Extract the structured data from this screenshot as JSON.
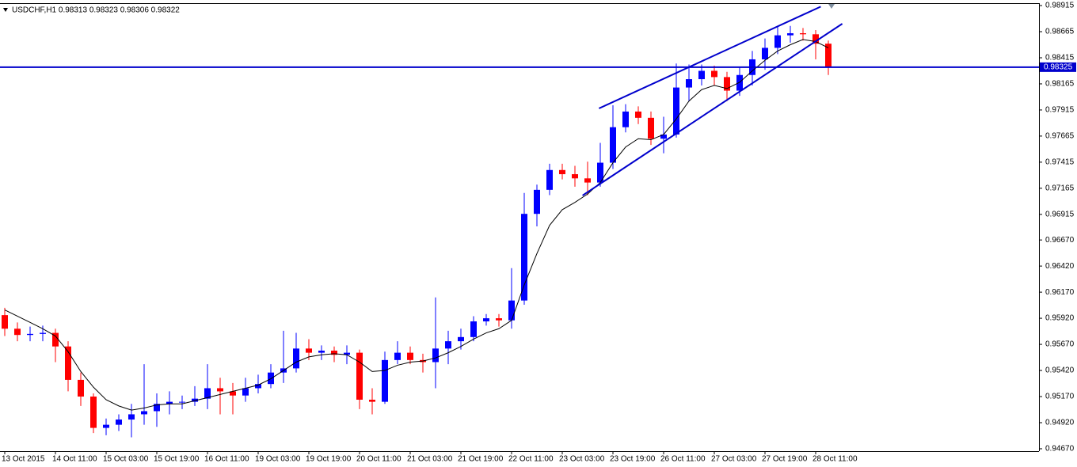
{
  "chart_data": {
    "type": "candlestick",
    "title": "USDCHF,H1  0.98313 0.98323 0.98306 0.98322",
    "up_color": "#0000ff",
    "down_color": "#ff0000",
    "ma_color": "#000000",
    "categories": [
      "13 Oct 2015",
      null,
      null,
      null,
      "14 Oct 11:00",
      null,
      null,
      null,
      "15 Oct 03:00",
      null,
      null,
      null,
      "15 Oct 19:00",
      null,
      null,
      null,
      "16 Oct 11:00",
      null,
      null,
      null,
      "19 Oct 03:00",
      null,
      null,
      null,
      "19 Oct 19:00",
      null,
      null,
      null,
      "20 Oct 11:00",
      null,
      null,
      null,
      "21 Oct 03:00",
      null,
      null,
      null,
      "21 Oct 19:00",
      null,
      null,
      null,
      "22 Oct 11:00",
      null,
      null,
      null,
      "23 Oct 03:00",
      null,
      null,
      null,
      "23 Oct 19:00",
      null,
      null,
      null,
      "26 Oct 11:00",
      null,
      null,
      null,
      "27 Oct 03:00",
      null,
      null,
      null,
      "27 Oct 19:00",
      null,
      null,
      null,
      "28 Oct 11:00",
      null
    ],
    "open": [
      0.9595,
      0.9582,
      0.9576,
      0.9577,
      0.9578,
      0.9565,
      0.9533,
      0.9517,
      0.9487,
      0.949,
      0.9495,
      0.95,
      0.9503,
      0.951,
      0.9512,
      0.9512,
      0.9515,
      0.9525,
      0.9522,
      0.9518,
      0.9525,
      0.9529,
      0.954,
      0.9544,
      0.9563,
      0.9559,
      0.9561,
      0.9557,
      0.9559,
      0.9514,
      0.9512,
      0.9552,
      0.9559,
      0.9552,
      0.955,
      0.9563,
      0.957,
      0.9574,
      0.9589,
      0.9592,
      0.959,
      0.9609,
      0.9692,
      0.9715,
      0.9734,
      0.973,
      0.9726,
      0.9722,
      0.9741,
      0.9775,
      0.979,
      0.9784,
      0.9764,
      0.9768,
      0.9813,
      0.9821,
      0.9829,
      0.9823,
      0.981,
      0.9825,
      0.984,
      0.9851,
      0.9863,
      0.9865,
      0.9864,
      0.9855
    ],
    "high": [
      0.9602,
      0.9588,
      0.9584,
      0.9585,
      0.9582,
      0.957,
      0.954,
      0.952,
      0.9496,
      0.95,
      0.951,
      0.9548,
      0.952,
      0.9522,
      0.9518,
      0.9527,
      0.9548,
      0.9535,
      0.953,
      0.9535,
      0.9538,
      0.9548,
      0.958,
      0.9578,
      0.9572,
      0.9566,
      0.9565,
      0.9566,
      0.9562,
      0.9525,
      0.956,
      0.957,
      0.9565,
      0.9558,
      0.9612,
      0.958,
      0.9582,
      0.9594,
      0.9596,
      0.9596,
      0.964,
      0.9712,
      0.972,
      0.974,
      0.974,
      0.9738,
      0.9742,
      0.976,
      0.9796,
      0.9797,
      0.9795,
      0.979,
      0.9785,
      0.9836,
      0.9835,
      0.9835,
      0.9834,
      0.9828,
      0.9832,
      0.9848,
      0.986,
      0.9872,
      0.9872,
      0.987,
      0.9868,
      0.9858
    ],
    "low": [
      0.9575,
      0.957,
      0.957,
      0.957,
      0.955,
      0.9522,
      0.9508,
      0.9482,
      0.948,
      0.9484,
      0.9478,
      0.949,
      0.9488,
      0.95,
      0.9505,
      0.9508,
      0.9505,
      0.95,
      0.95,
      0.9512,
      0.952,
      0.9525,
      0.953,
      0.954,
      0.9552,
      0.9552,
      0.955,
      0.9548,
      0.9505,
      0.95,
      0.951,
      0.9548,
      0.9548,
      0.954,
      0.9525,
      0.9548,
      0.9562,
      0.957,
      0.9585,
      0.9584,
      0.9582,
      0.9605,
      0.968,
      0.971,
      0.9725,
      0.9718,
      0.971,
      0.9718,
      0.9735,
      0.977,
      0.9778,
      0.9758,
      0.975,
      0.9765,
      0.98,
      0.9815,
      0.9815,
      0.98,
      0.9805,
      0.9815,
      0.983,
      0.9845,
      0.9856,
      0.9858,
      0.984,
      0.9825
    ],
    "close": [
      0.9582,
      0.9576,
      0.9577,
      0.9578,
      0.9565,
      0.9533,
      0.9517,
      0.9487,
      0.949,
      0.9495,
      0.95,
      0.9503,
      0.951,
      0.9512,
      0.9512,
      0.9515,
      0.9525,
      0.9522,
      0.9518,
      0.9525,
      0.9529,
      0.954,
      0.9544,
      0.9563,
      0.9559,
      0.9561,
      0.9557,
      0.9559,
      0.9514,
      0.9512,
      0.9552,
      0.9559,
      0.9552,
      0.955,
      0.9563,
      0.957,
      0.9574,
      0.9589,
      0.9592,
      0.959,
      0.9609,
      0.9692,
      0.9715,
      0.9734,
      0.973,
      0.9726,
      0.9722,
      0.9741,
      0.9775,
      0.979,
      0.9784,
      0.9764,
      0.9768,
      0.9813,
      0.9821,
      0.9829,
      0.9823,
      0.981,
      0.9825,
      0.984,
      0.9851,
      0.9863,
      0.9865,
      0.9864,
      0.9855,
      0.9832
    ],
    "ma": [
      0.96,
      0.9594,
      0.9588,
      0.9582,
      0.9575,
      0.956,
      0.9541,
      0.9526,
      0.9514,
      0.9508,
      0.9504,
      0.9506,
      0.9509,
      0.951,
      0.951,
      0.9513,
      0.9516,
      0.9519,
      0.9522,
      0.9525,
      0.9528,
      0.9534,
      0.9542,
      0.955,
      0.9555,
      0.9557,
      0.9558,
      0.9557,
      0.955,
      0.9541,
      0.9542,
      0.9547,
      0.955,
      0.9551,
      0.9554,
      0.9559,
      0.9565,
      0.9572,
      0.9578,
      0.9582,
      0.959,
      0.9624,
      0.9654,
      0.9681,
      0.9696,
      0.9703,
      0.9711,
      0.9722,
      0.9741,
      0.9756,
      0.9764,
      0.9763,
      0.9768,
      0.9783,
      0.98,
      0.9811,
      0.9815,
      0.9812,
      0.9818,
      0.9829,
      0.9839,
      0.9848,
      0.9854,
      0.9859,
      0.9857,
      0.9851
    ],
    "trendlines": [
      {
        "color": "#0000cc",
        "x": [
          46.9,
          64.4
        ],
        "y": [
          0.9793,
          0.98905
        ]
      },
      {
        "color": "#0000cc",
        "x": [
          45.6,
          66.1
        ],
        "y": [
          0.97096,
          0.98741
        ]
      }
    ],
    "hline": {
      "value": 0.98325,
      "color": "#0000cc"
    },
    "ylim": [
      0.94647,
      0.98938
    ],
    "yticks": [
      0.98915,
      0.98665,
      0.98415,
      0.98165,
      0.97915,
      0.97665,
      0.97415,
      0.97165,
      0.96915,
      {
        "value": 0.9667,
        "label": "0.96670"
      },
      {
        "value": 0.9642,
        "label": "0.96420"
      },
      {
        "value": 0.9617,
        "label": "0.96170"
      },
      {
        "value": 0.9592,
        "label": "0.95920"
      },
      {
        "value": 0.9567,
        "label": "0.95670"
      },
      {
        "value": 0.9542,
        "label": "0.95420"
      },
      {
        "value": 0.9517,
        "label": "0.95170"
      },
      {
        "value": 0.9492,
        "label": "0.94920"
      },
      {
        "value": 0.9467,
        "label": "0.94670"
      }
    ]
  }
}
